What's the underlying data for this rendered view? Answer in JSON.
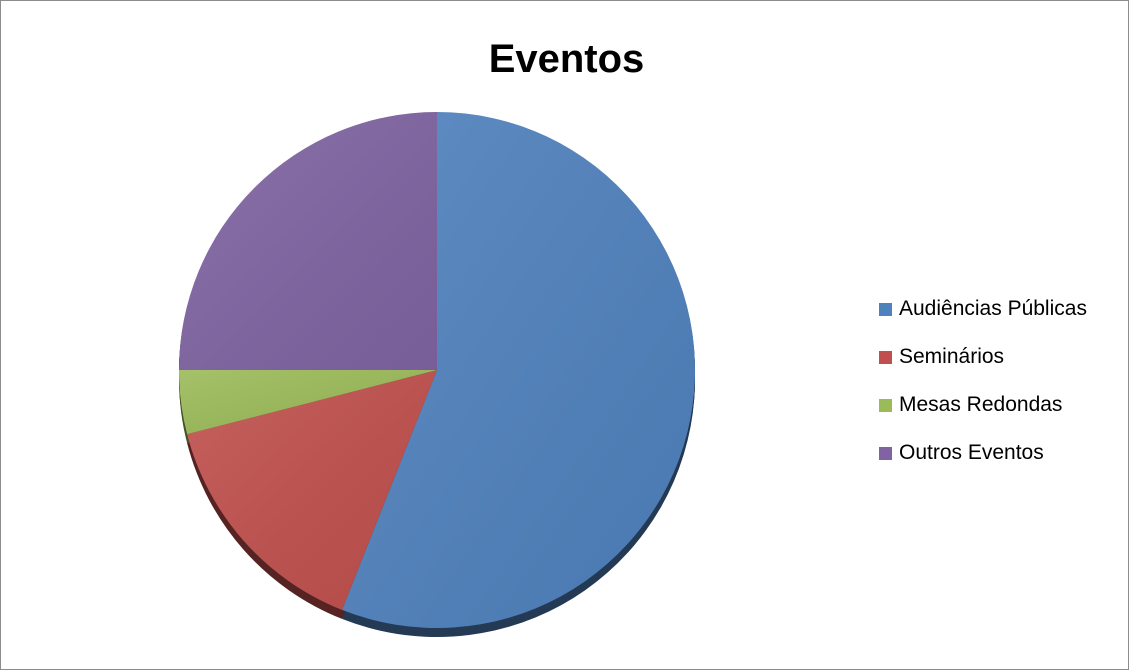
{
  "chart_data": {
    "type": "pie",
    "title": "Eventos",
    "categories": [
      "Audiências Públicas",
      "Seminários",
      "Mesas Redondas",
      "Outros Eventos"
    ],
    "values": [
      56,
      15,
      4,
      25
    ],
    "colors": [
      "#4f81bd",
      "#c0504d",
      "#9bbb59",
      "#8064a2"
    ],
    "legend_position": "right"
  }
}
